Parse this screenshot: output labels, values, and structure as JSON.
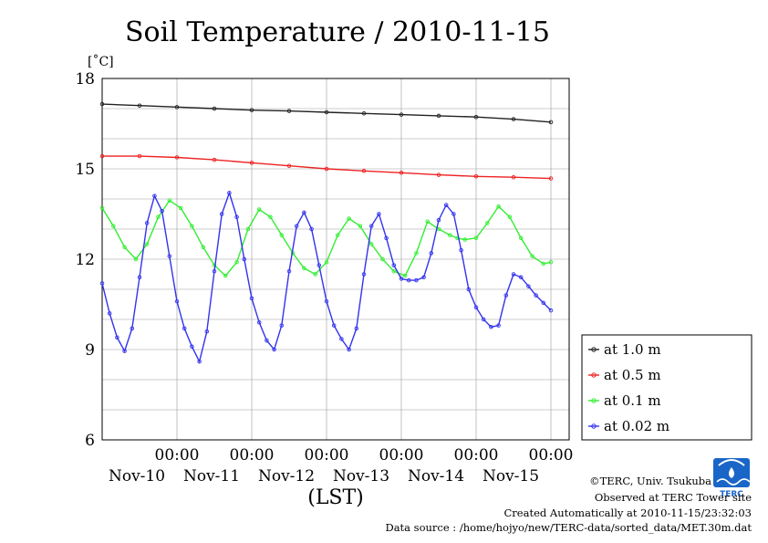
{
  "chart_data": {
    "type": "line",
    "title": "Soil Temperature / 2010-11-15",
    "ylabel": "[˚C]",
    "xlabel": "(LST)",
    "ylim": [
      6,
      18
    ],
    "yticks": [
      6,
      9,
      12,
      15,
      18
    ],
    "xlim": [
      0,
      6
    ],
    "x_unit": "days from 2010-11-09 00:00 LST",
    "xticks": [
      {
        "x": 1,
        "label": "00:00",
        "day": "Nov-10"
      },
      {
        "x": 2,
        "label": "00:00",
        "day": "Nov-11"
      },
      {
        "x": 3,
        "label": "00:00",
        "day": "Nov-12"
      },
      {
        "x": 4,
        "label": "00:00",
        "day": "Nov-13"
      },
      {
        "x": 5,
        "label": "00:00",
        "day": "Nov-14"
      },
      {
        "x": 6,
        "label": "00:00",
        "day": "Nov-15"
      }
    ],
    "legend_position": "right-bottom outside",
    "grid": true,
    "series": [
      {
        "name": "at 1.0 m",
        "color": "#222222",
        "x": [
          0.0,
          0.5,
          1.0,
          1.5,
          2.0,
          2.5,
          3.0,
          3.5,
          4.0,
          4.5,
          5.0,
          5.5,
          6.0
        ],
        "values": [
          17.15,
          17.1,
          17.05,
          17.0,
          16.95,
          16.92,
          16.88,
          16.84,
          16.8,
          16.76,
          16.72,
          16.65,
          16.55
        ]
      },
      {
        "name": "at 0.5 m",
        "color": "#ee2222",
        "x": [
          0.0,
          0.5,
          1.0,
          1.5,
          2.0,
          2.5,
          3.0,
          3.5,
          4.0,
          4.5,
          5.0,
          5.5,
          6.0
        ],
        "values": [
          15.42,
          15.42,
          15.38,
          15.3,
          15.2,
          15.1,
          15.0,
          14.93,
          14.87,
          14.8,
          14.75,
          14.72,
          14.68
        ]
      },
      {
        "name": "at 0.1 m",
        "color": "#33ee33",
        "x": [
          0.0,
          0.15,
          0.3,
          0.45,
          0.6,
          0.75,
          0.9,
          1.05,
          1.2,
          1.35,
          1.5,
          1.65,
          1.8,
          1.95,
          2.1,
          2.25,
          2.4,
          2.55,
          2.7,
          2.85,
          3.0,
          3.15,
          3.3,
          3.45,
          3.6,
          3.75,
          3.9,
          4.05,
          4.2,
          4.35,
          4.5,
          4.65,
          4.75,
          4.85,
          5.0,
          5.15,
          5.3,
          5.45,
          5.6,
          5.75,
          5.9,
          6.0
        ],
        "values": [
          13.7,
          13.1,
          12.4,
          12.0,
          12.5,
          13.4,
          13.95,
          13.7,
          13.1,
          12.4,
          11.8,
          11.45,
          11.9,
          13.0,
          13.65,
          13.4,
          12.8,
          12.2,
          11.7,
          11.5,
          11.9,
          12.8,
          13.35,
          13.1,
          12.5,
          12.0,
          11.6,
          11.45,
          12.2,
          13.25,
          13.0,
          12.8,
          12.7,
          12.65,
          12.7,
          13.2,
          13.75,
          13.4,
          12.7,
          12.1,
          11.85,
          11.9
        ]
      },
      {
        "name": "at 0.02 m",
        "color": "#3333ee",
        "x": [
          0.0,
          0.1,
          0.2,
          0.3,
          0.4,
          0.5,
          0.6,
          0.7,
          0.8,
          0.9,
          1.0,
          1.1,
          1.2,
          1.3,
          1.4,
          1.5,
          1.6,
          1.7,
          1.8,
          1.9,
          2.0,
          2.1,
          2.2,
          2.3,
          2.4,
          2.5,
          2.6,
          2.7,
          2.8,
          2.9,
          3.0,
          3.1,
          3.2,
          3.3,
          3.4,
          3.5,
          3.6,
          3.7,
          3.8,
          3.9,
          4.0,
          4.1,
          4.2,
          4.3,
          4.4,
          4.5,
          4.6,
          4.7,
          4.8,
          4.9,
          5.0,
          5.1,
          5.2,
          5.3,
          5.4,
          5.5,
          5.6,
          5.7,
          5.8,
          5.9,
          6.0
        ],
        "values": [
          11.2,
          10.2,
          9.4,
          8.95,
          9.7,
          11.4,
          13.2,
          14.1,
          13.6,
          12.1,
          10.6,
          9.7,
          9.1,
          8.6,
          9.6,
          11.6,
          13.5,
          14.2,
          13.4,
          12.0,
          10.7,
          9.9,
          9.3,
          9.0,
          9.8,
          11.6,
          13.1,
          13.55,
          13.0,
          11.8,
          10.6,
          9.8,
          9.35,
          9.0,
          9.7,
          11.5,
          13.1,
          13.5,
          12.7,
          11.8,
          11.35,
          11.3,
          11.3,
          11.4,
          12.2,
          13.3,
          13.8,
          13.5,
          12.3,
          11.0,
          10.4,
          10.0,
          9.75,
          9.8,
          10.8,
          11.5,
          11.4,
          11.1,
          10.8,
          10.55,
          10.3
        ]
      }
    ]
  },
  "credits": {
    "copyright": "©TERC, Univ. Tsukuba",
    "observed": "Observed at TERC Tower site",
    "created": "Created Automatically at 2010-11-15/23:32:03",
    "source": "Data source : /home/hojyo/new/TERC-data/sorted_data/MET.30m.dat"
  },
  "logo": {
    "text": "TERC",
    "color": "#1a66c8"
  }
}
